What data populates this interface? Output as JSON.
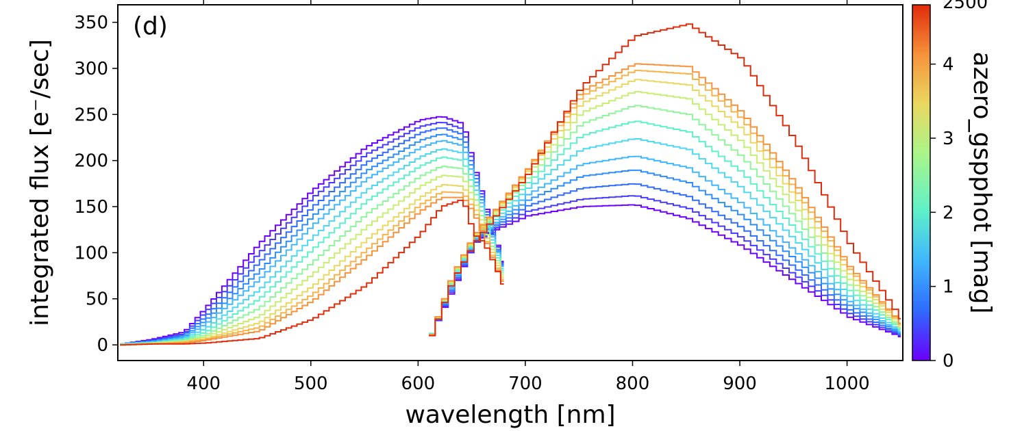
{
  "chart_data": {
    "type": "line",
    "panel_label": "(d)",
    "xlabel": "wavelength [nm]",
    "ylabel": "integrated flux [e⁻/sec]",
    "xlim": [
      320,
      1052
    ],
    "ylim": [
      -17,
      369
    ],
    "xticks": [
      400,
      500,
      600,
      700,
      800,
      900,
      1000
    ],
    "xtick_labels": [
      "400",
      "500",
      "600",
      "700",
      "800",
      "900",
      "1000"
    ],
    "yticks": [
      0,
      50,
      100,
      150,
      200,
      250,
      300,
      350
    ],
    "ytick_labels": [
      "0",
      "50",
      "100",
      "150",
      "200",
      "250",
      "300",
      "350"
    ],
    "grid": false,
    "colorbar": {
      "label": "azero_gspphot [mag]",
      "range": [
        0,
        4.8
      ],
      "ticks": [
        0,
        1,
        2,
        3,
        4
      ],
      "tick_labels": [
        "0",
        "1",
        "2",
        "3",
        "4"
      ],
      "top_label_partial": "2500",
      "colors": [
        "#6a00ff",
        "#2f6bff",
        "#3fb6ff",
        "#5ef0c8",
        "#a9f58a",
        "#e9d860",
        "#f7923a",
        "#e02a0a"
      ]
    },
    "series": [
      {
        "azero": 0.0,
        "color": "#6a00ff",
        "bp_x": [
          322,
          350,
          380,
          400,
          450,
          500,
          550,
          600,
          620,
          640,
          650,
          660,
          670,
          680
        ],
        "bp_y": [
          1,
          6,
          14,
          40,
          110,
          168,
          215,
          244,
          248,
          240,
          195,
          155,
          115,
          80
        ],
        "rp_x": [
          610,
          630,
          650,
          670,
          700,
          750,
          800,
          850,
          900,
          950,
          1000,
          1050
        ],
        "rp_y": [
          12,
          60,
          110,
          125,
          140,
          150,
          152,
          137,
          107,
          68,
          30,
          8
        ]
      },
      {
        "azero": 0.25,
        "color": "#4638ff",
        "bp_x": [
          322,
          350,
          380,
          400,
          450,
          500,
          550,
          600,
          620,
          640,
          650,
          660,
          670,
          680
        ],
        "bp_y": [
          1,
          5,
          12,
          36,
          100,
          160,
          207,
          237,
          242,
          234,
          192,
          152,
          113,
          79
        ],
        "rp_x": [
          610,
          630,
          650,
          670,
          700,
          750,
          800,
          850,
          900,
          950,
          1000,
          1050
        ],
        "rp_y": [
          12,
          62,
          110,
          127,
          145,
          158,
          162,
          148,
          116,
          75,
          34,
          9
        ]
      },
      {
        "azero": 0.5,
        "color": "#2f6bff",
        "bp_x": [
          322,
          350,
          380,
          400,
          450,
          500,
          550,
          600,
          620,
          640,
          650,
          660,
          670,
          680
        ],
        "bp_y": [
          1,
          4,
          11,
          31,
          90,
          150,
          198,
          230,
          236,
          228,
          188,
          149,
          110,
          78
        ],
        "rp_x": [
          610,
          630,
          650,
          670,
          700,
          750,
          800,
          850,
          900,
          950,
          1000,
          1050
        ],
        "rp_y": [
          12,
          64,
          111,
          129,
          151,
          170,
          175,
          161,
          127,
          83,
          38,
          10
        ]
      },
      {
        "azero": 0.75,
        "color": "#2c8dff",
        "bp_x": [
          322,
          350,
          380,
          400,
          450,
          500,
          550,
          600,
          620,
          640,
          650,
          660,
          670,
          680
        ],
        "bp_y": [
          1,
          4,
          9,
          27,
          80,
          140,
          189,
          222,
          229,
          222,
          184,
          146,
          108,
          77
        ],
        "rp_x": [
          610,
          630,
          650,
          670,
          700,
          750,
          800,
          850,
          900,
          950,
          1000,
          1050
        ],
        "rp_y": [
          12,
          66,
          112,
          131,
          157,
          183,
          190,
          176,
          140,
          92,
          43,
          11
        ]
      },
      {
        "azero": 1.0,
        "color": "#3fb6ff",
        "bp_x": [
          322,
          350,
          380,
          400,
          450,
          500,
          550,
          600,
          620,
          640,
          650,
          660,
          670,
          680
        ],
        "bp_y": [
          1,
          3,
          8,
          23,
          71,
          130,
          180,
          214,
          222,
          216,
          180,
          143,
          106,
          76
        ],
        "rp_x": [
          610,
          630,
          650,
          670,
          700,
          750,
          800,
          850,
          900,
          950,
          1000,
          1050
        ],
        "rp_y": [
          12,
          68,
          113,
          133,
          163,
          196,
          205,
          192,
          153,
          101,
          47,
          12
        ]
      },
      {
        "azero": 1.4,
        "color": "#4dd8f0",
        "bp_x": [
          322,
          350,
          380,
          400,
          450,
          500,
          550,
          600,
          620,
          640,
          650,
          660,
          670,
          680
        ],
        "bp_y": [
          1,
          3,
          7,
          18,
          60,
          117,
          168,
          204,
          213,
          208,
          175,
          139,
          103,
          74
        ],
        "rp_x": [
          610,
          630,
          650,
          670,
          700,
          750,
          800,
          850,
          900,
          950,
          1000,
          1050
        ],
        "rp_y": [
          12,
          70,
          114,
          136,
          170,
          212,
          224,
          212,
          170,
          113,
          53,
          13
        ]
      },
      {
        "azero": 1.8,
        "color": "#5ef0c8",
        "bp_x": [
          322,
          350,
          380,
          400,
          450,
          500,
          550,
          600,
          620,
          640,
          650,
          660,
          670,
          680
        ],
        "bp_y": [
          1,
          2,
          6,
          14,
          50,
          104,
          156,
          194,
          204,
          200,
          170,
          135,
          100,
          72
        ],
        "rp_x": [
          610,
          630,
          650,
          670,
          700,
          750,
          800,
          850,
          900,
          950,
          1000,
          1050
        ],
        "rp_y": [
          12,
          72,
          115,
          139,
          176,
          227,
          243,
          231,
          187,
          125,
          59,
          15
        ]
      },
      {
        "azero": 2.3,
        "color": "#8ff59c",
        "bp_x": [
          322,
          350,
          380,
          400,
          450,
          500,
          550,
          600,
          620,
          640,
          650,
          660,
          670,
          680
        ],
        "bp_y": [
          0,
          2,
          5,
          11,
          40,
          90,
          142,
          183,
          194,
          191,
          164,
          130,
          97,
          70
        ],
        "rp_x": [
          610,
          630,
          650,
          670,
          700,
          750,
          800,
          850,
          900,
          950,
          1000,
          1050
        ],
        "rp_y": [
          11,
          73,
          116,
          141,
          181,
          240,
          260,
          250,
          204,
          137,
          65,
          16
        ]
      },
      {
        "azero": 2.8,
        "color": "#c6ee72",
        "bp_x": [
          322,
          350,
          380,
          400,
          450,
          500,
          550,
          600,
          620,
          640,
          650,
          660,
          670,
          680
        ],
        "bp_y": [
          0,
          2,
          4,
          9,
          31,
          77,
          128,
          172,
          184,
          182,
          158,
          126,
          94,
          68
        ],
        "rp_x": [
          610,
          630,
          650,
          670,
          700,
          750,
          800,
          850,
          900,
          950,
          1000,
          1050
        ],
        "rp_y": [
          11,
          74,
          117,
          143,
          185,
          252,
          275,
          267,
          220,
          149,
          71,
          17
        ]
      },
      {
        "azero": 3.3,
        "color": "#e9d860",
        "bp_x": [
          322,
          350,
          380,
          400,
          450,
          500,
          550,
          600,
          620,
          640,
          650,
          660,
          670,
          680
        ],
        "bp_y": [
          0,
          1,
          3,
          7,
          24,
          64,
          114,
          160,
          174,
          172,
          152,
          122,
          91,
          66
        ],
        "rp_x": [
          610,
          630,
          650,
          670,
          700,
          750,
          800,
          850,
          900,
          950,
          1000,
          1050
        ],
        "rp_y": [
          11,
          75,
          118,
          145,
          188,
          262,
          288,
          282,
          234,
          160,
          77,
          19
        ]
      },
      {
        "azero": 3.8,
        "color": "#f7b24a",
        "bp_x": [
          322,
          350,
          380,
          400,
          450,
          500,
          550,
          600,
          620,
          640,
          650,
          660,
          670,
          680
        ],
        "bp_y": [
          0,
          1,
          3,
          6,
          19,
          55,
          103,
          152,
          166,
          165,
          147,
          118,
          88,
          64
        ],
        "rp_x": [
          610,
          630,
          650,
          670,
          700,
          750,
          800,
          850,
          900,
          950,
          1000,
          1050
        ],
        "rp_y": [
          11,
          76,
          119,
          146,
          190,
          270,
          298,
          294,
          245,
          168,
          82,
          20
        ]
      },
      {
        "azero": 4.2,
        "color": "#f7923a",
        "bp_x": [
          322,
          350,
          380,
          400,
          450,
          500,
          550,
          600,
          620,
          640,
          650,
          660,
          670,
          680
        ],
        "bp_y": [
          0,
          1,
          2,
          5,
          15,
          48,
          95,
          145,
          160,
          160,
          143,
          116,
          86,
          62
        ],
        "rp_x": [
          610,
          630,
          650,
          670,
          700,
          750,
          800,
          850,
          900,
          950,
          1000,
          1050
        ],
        "rp_y": [
          11,
          76,
          119,
          147,
          191,
          275,
          305,
          302,
          252,
          174,
          85,
          21
        ]
      },
      {
        "azero": 4.8,
        "color": "#e02a0a",
        "bp_x": [
          322,
          350,
          380,
          400,
          450,
          500,
          550,
          600,
          620,
          640,
          650,
          660,
          670,
          680
        ],
        "bp_y": [
          0,
          1,
          1,
          2,
          7,
          28,
          65,
          120,
          150,
          158,
          120,
          110,
          85,
          58
        ],
        "rp_x": [
          610,
          630,
          650,
          670,
          700,
          750,
          800,
          850,
          900,
          950,
          1000,
          1050
        ],
        "rp_y": [
          10,
          70,
          110,
          140,
          185,
          280,
          335,
          348,
          310,
          220,
          110,
          25
        ]
      }
    ]
  }
}
